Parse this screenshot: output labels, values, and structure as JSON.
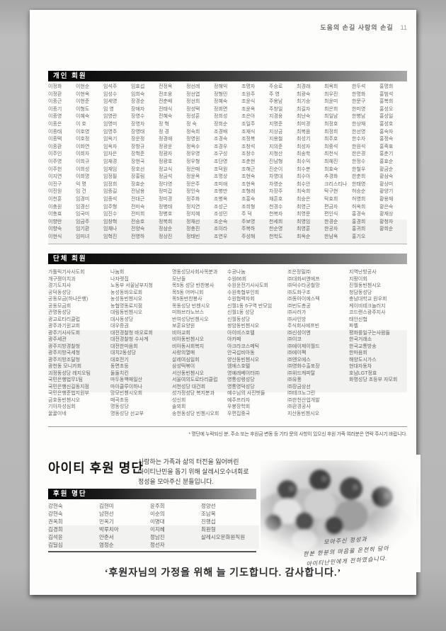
{
  "page": {
    "header_title": "도움의 손길 사랑의 손길",
    "page_number": "11"
  },
  "colors": {
    "background_gray": "#b4b4b4",
    "page_white": "#fdfdfc",
    "bar_dark": "#050505",
    "bar_light": "#a9a9a9",
    "text_gray": "#666666"
  },
  "individual_section": {
    "title": "개인 회원",
    "columns": [
      [
        "이정화",
        "이정환",
        "이종근",
        "이종기",
        "이종영",
        "이종은",
        "이종태",
        "이종택",
        "이종환",
        "이주인",
        "이주영",
        "이주헌",
        "이지연",
        "이진구",
        "이진원",
        "이천훈",
        "이충원",
        "이충효",
        "이향란",
        "이향숙",
        "이현식"
      ],
      [
        "이현순",
        "이현옥",
        "이현준",
        "이형도",
        "이혜숙",
        "이 호",
        "이호영",
        "이호정",
        "이화연",
        "이희자",
        "이희규",
        "이희성",
        "이희명",
        "익 명",
        "임 건",
        "임경미",
        "임경신",
        "임국미",
        "임금주",
        "임기환",
        "임미녀"
      ],
      [
        "임석주",
        "임성수",
        "임세영",
        "임 영",
        "임영란",
        "임영미",
        "임영주",
        "임옥기",
        "임옥자",
        "임자은",
        "임재경",
        "임재임",
        "임정필",
        "임정희",
        "임종길",
        "임종석",
        "임주형",
        "임진수",
        "임창혁",
        "임채나",
        "임혁진"
      ],
      [
        "임효섭",
        "임희숙",
        "장경순",
        "장애자",
        "장영수",
        "장영자",
        "장영태",
        "장운정",
        "장항규",
        "장혁준",
        "장현국",
        "장호선",
        "장홍림",
        "장효순",
        "전남용",
        "전대근",
        "전미숙",
        "전미희",
        "전승호",
        "전양숙",
        "전영하"
      ],
      [
        "전정옥",
        "전조웅",
        "전춘배",
        "전태식",
        "전혜숙",
        "정 혁",
        "정 경",
        "정경애",
        "정광운",
        "정광자",
        "정광호",
        "정교식",
        "정금석",
        "정다영",
        "정미갑",
        "정미경",
        "정병태",
        "정병호",
        "정복희",
        "정삼순",
        "정상진"
      ],
      [
        "정선례",
        "정선엽",
        "정선희",
        "정성택",
        "정성훈",
        "정 숙",
        "정숙희",
        "정영원",
        "정옥수",
        "정우영",
        "정우형",
        "정은매",
        "정윤옥",
        "정은주",
        "정인숙",
        "정주화",
        "정지연",
        "정지혜",
        "정채선",
        "정충진",
        "정태빈"
      ],
      [
        "정해익",
        "정형민",
        "정혜숙",
        "정회면",
        "정희성",
        "정희순",
        "조경배",
        "조경숙",
        "조경우",
        "조구성",
        "조단영",
        "조덕원",
        "조명상",
        "조미애",
        "조병만",
        "조병옥",
        "조성근",
        "조성민",
        "조순숙",
        "조이라",
        "조연우"
      ],
      [
        "조명자",
        "조원주",
        "조윤식",
        "조윤옥",
        "조은아",
        "조일주",
        "조재식",
        "조정복",
        "조창석",
        "조창수",
        "조춘현",
        "조해근",
        "조현숙",
        "조현옥",
        "조형래",
        "조홍숙",
        "조희형",
        "주 덕",
        "주보영",
        "주복하",
        "주성해"
      ],
      [
        "주승로",
        "주 영",
        "주용남",
        "주창일",
        "지경웅",
        "지명준",
        "지상금",
        "지용철",
        "지의준",
        "지청산",
        "진남형",
        "진순이",
        "차영대",
        "차영순",
        "차장주",
        "채흔호",
        "천경수",
        "천복자",
        "천세희",
        "천순영",
        "천학도"
      ],
      [
        "최경래",
        "최광숙",
        "최기승",
        "최길자",
        "최난숙",
        "최미경",
        "최복음",
        "최성기",
        "최성자",
        "최송학",
        "최수익",
        "최수분",
        "최수아",
        "최수안",
        "최숙희",
        "최승은",
        "최영근",
        "최영문",
        "최영임",
        "최영훈",
        "최옥순"
      ],
      [
        "최옥희",
        "최우진",
        "최윤미",
        "최은희",
        "최일남",
        "최정호",
        "최정희",
        "최주호",
        "최중석",
        "최천식",
        "최혜진",
        "최효숙",
        "추경화",
        "크리스티나",
        "탁구현",
        "탁효희",
        "편금자",
        "편인식",
        "한경순",
        "한공자",
        "한남옥"
      ],
      [
        "한두석",
        "한명화",
        "한문구",
        "한미영",
        "한병남",
        "한상재",
        "한선영",
        "한수자",
        "한원석",
        "한은경",
        "한정수",
        "한철우",
        "한춘희",
        "한태영",
        "허승순",
        "허영희",
        "허옥희",
        "홍경숙",
        "홍경희",
        "홍귀희",
        "홍기오"
      ],
      [
        "홍명희",
        "홍범석",
        "홍복희",
        "홍성오",
        "홍성일",
        "홍성호",
        "홍숙자",
        "홍정숙",
        "홍죽표",
        "홍춘기",
        "홍효순",
        "황금순",
        "황삼숙",
        "황상미",
        "황양기",
        "황용재",
        "황은숙",
        "황재상",
        "황청자",
        "황희순",
        ""
      ]
    ]
  },
  "organization_section": {
    "title": "단체 회원",
    "columns": [
      [
        "가톨릭기사사도회",
        "개구쟁이치과",
        "경기도지사",
        "공덕동성당",
        "공동모금(하나은행)",
        "공동모금회",
        "관명동성당",
        "광교로타리클럽",
        "광주과기원교회",
        "광주기사사도회",
        "광주세관",
        "광주지방경찰청",
        "광주지방국세청",
        "광주지방조달청",
        "광천동 모니카회",
        "괴정동성당 레지오팀",
        "국민은행법무1팀",
        "국민은행신길동지점",
        "국민은행준법지원부",
        "금호동빈첸시오",
        "기아차성심회",
        "꿀꿀이네"
      ],
      [
        "나눔회",
        "나자렛집",
        "노동부 서울남부지청",
        "농성동바오로회",
        "농성동빈첸시오",
        "농협명동로지점",
        "대림동빈첸시오",
        "대사동성당",
        "대우증권",
        "대전경찰청 바오로회",
        "대전경찰청 수사계",
        "대전한마음회",
        "대치2동성당",
        "대호전기",
        "동면초등",
        "둘둘치킨",
        "마두동백매일산",
        "마이클루이하나",
        "망모빈첸시오회",
        "매곡초등",
        "명동성당",
        "명동성당 선교부"
      ],
      [
        "명동성당사회사목분과",
        "모난돌",
        "목5동 성당 반찬봉사",
        "목5동 어머니회",
        "목5동반찬봉사",
        "목동성당 빈첸시오",
        "미화브라노브스",
        "반여성당빈첸시오",
        "보훈요양원",
        "비아교회",
        "비아동빈첸시오",
        "비아동사회복지",
        "사랑의열매",
        "살레여심일회",
        "삼성떡볶이",
        "서산동빈첸시오",
        "서울여의도로타리클럽",
        "서천성당 대건회",
        "성가정성당 복지분과",
        "성신회",
        "솔뫼회",
        "송천동성당 빈첸시오회"
      ],
      [
        "수공나눔",
        "수원66회",
        "수원운전기사사도회",
        "수원축협부인회",
        "수원협력자회",
        "신월1동 6구역 반모임",
        "신월1동 성당",
        "신월동성당",
        "쌍암동빈첸시오",
        "아이비스호텔",
        "아카페",
        "아크라코스메틱",
        "안국섭비아동",
        "양산동빈첸시오",
        "엠에스호텔",
        "영예레베이터㈜",
        "영통성령성당",
        "영통영덕성당",
        "예수님의 사진벗들",
        "예주프라자",
        "우봉장학회",
        "우편집중국"
      ],
      [
        "조은정밀㈜",
        "㈜대화씨앤에프",
        "㈜덕수타공철망",
        "㈜도화구조",
        "㈜동아이에스텍",
        "㈜빈도총공",
        "㈜사러가",
        "㈜샤인방",
        "주식회사에프빈",
        "㈜신성이엔",
        "㈜이코",
        "㈜에이제이월드",
        "㈜에이펙",
        "㈜엔오에스",
        "㈜영화수출포장",
        "㈜위드캐피탈",
        "㈜유풍",
        "㈜장금상선",
        "㈜테크노그린",
        "㈜한천산업개발",
        "㈜환경공사",
        "지산동빈첸시오"
      ],
      [
        "지역난방공사",
        "지팡이회",
        "진월동빈첸시오",
        "청담동성당",
        "충남대학교 원우회",
        "케이비테크놀러지",
        "코드랜스광주지사",
        "태안신협",
        "파벨",
        "평화를일구는사람들",
        "한국거래소",
        "한국교통방송",
        "한마음회",
        "해양도시가스",
        "현대자동차",
        "호남LGT정효",
        "화명성당 초등부 자모회"
      ]
    ],
    "note": "* 명단에 누락되신 분, 주소 또는 후원금 변동 등 기타 문의 사항이 있으신 후원 가족 여러분은 연락 주시기 바랍니다."
  },
  "haiti_section": {
    "title": "아이티 후원 명단",
    "description_lines": [
      "사랑하는 가족과 삶의 터전을 잃어버린",
      "아이티난민을 돕기 위해 살레시오수녀회로",
      "정성을 모아주신 분들입니다."
    ],
    "supporters": {
      "title": "후원 명단",
      "columns": [
        [
          "강현숙",
          "강현숙",
          "권옥희",
          "김경희",
          "김석윤",
          "김딜심"
        ],
        [
          "김현미",
          "남현선",
          "민옥기",
          "박루치아",
          "안준서",
          "염정순"
        ],
        [
          "윤주희",
          "이순의",
          "이명대",
          "이지혜",
          "정남진",
          "정선자"
        ],
        [
          "정양선",
          "조남복",
          "진행섭",
          "최원형",
          "살레시오문화원직원"
        ]
      ]
    },
    "photo_caption_lines": [
      "모아주신 정성과",
      "한분 한분의 마음을 온전히 담아",
      "아이티난민에게 전하였습니다."
    ],
    "quote": "‘후원자님의 가정을 위해 늘 기도합니다. 감사합니다.’"
  }
}
